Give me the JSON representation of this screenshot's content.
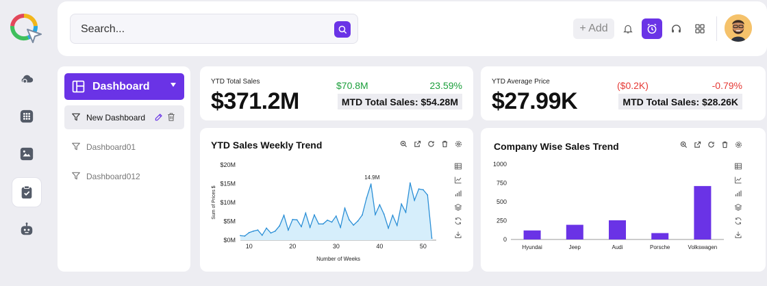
{
  "search": {
    "placeholder": "Search..."
  },
  "topbar": {
    "add_label": "+ Add"
  },
  "sidebar": {
    "header_label": "Dashboard",
    "items": [
      {
        "label": "New Dashboard"
      },
      {
        "label": "Dashboard01"
      },
      {
        "label": "Dashboard012"
      }
    ]
  },
  "kpi": [
    {
      "label": "YTD Total Sales",
      "value": "$371.2M",
      "delta": "$70.8M",
      "pct": "23.59%",
      "mtd": "MTD Total Sales: $54.28M"
    },
    {
      "label": "YTD Average Price",
      "value": "$27.99K",
      "delta": "($0.2K)",
      "pct": "-0.79%",
      "mtd": "MTD Total Sales: $28.26K"
    }
  ],
  "colors": {
    "accent": "#6a33e6",
    "positive": "#1a9e3a",
    "negative": "#e53935",
    "line": "#2b8fd6",
    "area": "#d6eefb"
  },
  "chart_data": [
    {
      "type": "area",
      "title": "YTD Sales Weekly Trend",
      "xlabel": "Number of Weeks",
      "ylabel": "Sum of Prices $",
      "xlim": [
        8,
        53
      ],
      "ylim": [
        0,
        20
      ],
      "x_ticks": [
        10,
        20,
        30,
        40,
        50
      ],
      "y_ticks": [
        "$0M",
        "$5M",
        "$10M",
        "$15M",
        "$20M"
      ],
      "y_tick_values": [
        0,
        5,
        10,
        15,
        20
      ],
      "annotation": {
        "text": "14.9M",
        "x": 37,
        "y": 14.9
      },
      "x": [
        8,
        9,
        10,
        11,
        12,
        13,
        14,
        15,
        16,
        17,
        18,
        19,
        20,
        21,
        22,
        23,
        24,
        25,
        26,
        27,
        28,
        29,
        30,
        31,
        32,
        33,
        34,
        35,
        36,
        37,
        38,
        39,
        40,
        41,
        42,
        43,
        44,
        45,
        46,
        47,
        48,
        49,
        50,
        51,
        52
      ],
      "values": [
        1.2,
        1.1,
        2.0,
        2.4,
        2.7,
        1.3,
        3.2,
        1.9,
        2.4,
        3.8,
        6.6,
        2.7,
        5.5,
        5.4,
        3.6,
        7.2,
        3.4,
        6.7,
        4.3,
        4.3,
        5.3,
        4.8,
        6.4,
        3.4,
        8.5,
        5.4,
        4.0,
        5.1,
        6.7,
        11.2,
        14.9,
        6.8,
        9.4,
        6.9,
        3.2,
        6.6,
        3.9,
        9.6,
        7.4,
        15.2,
        10.6,
        13.6,
        13.4,
        12.0,
        0.5
      ]
    },
    {
      "type": "bar",
      "title": "Company Wise  Sales Trend",
      "categories": [
        "Hyundai",
        "Jeep",
        "Audi",
        "Porsche",
        "Volkswagen"
      ],
      "values": [
        120,
        195,
        255,
        85,
        710
      ],
      "ylim": [
        0,
        1000
      ],
      "y_ticks": [
        0,
        250,
        500,
        750,
        1000
      ]
    }
  ]
}
